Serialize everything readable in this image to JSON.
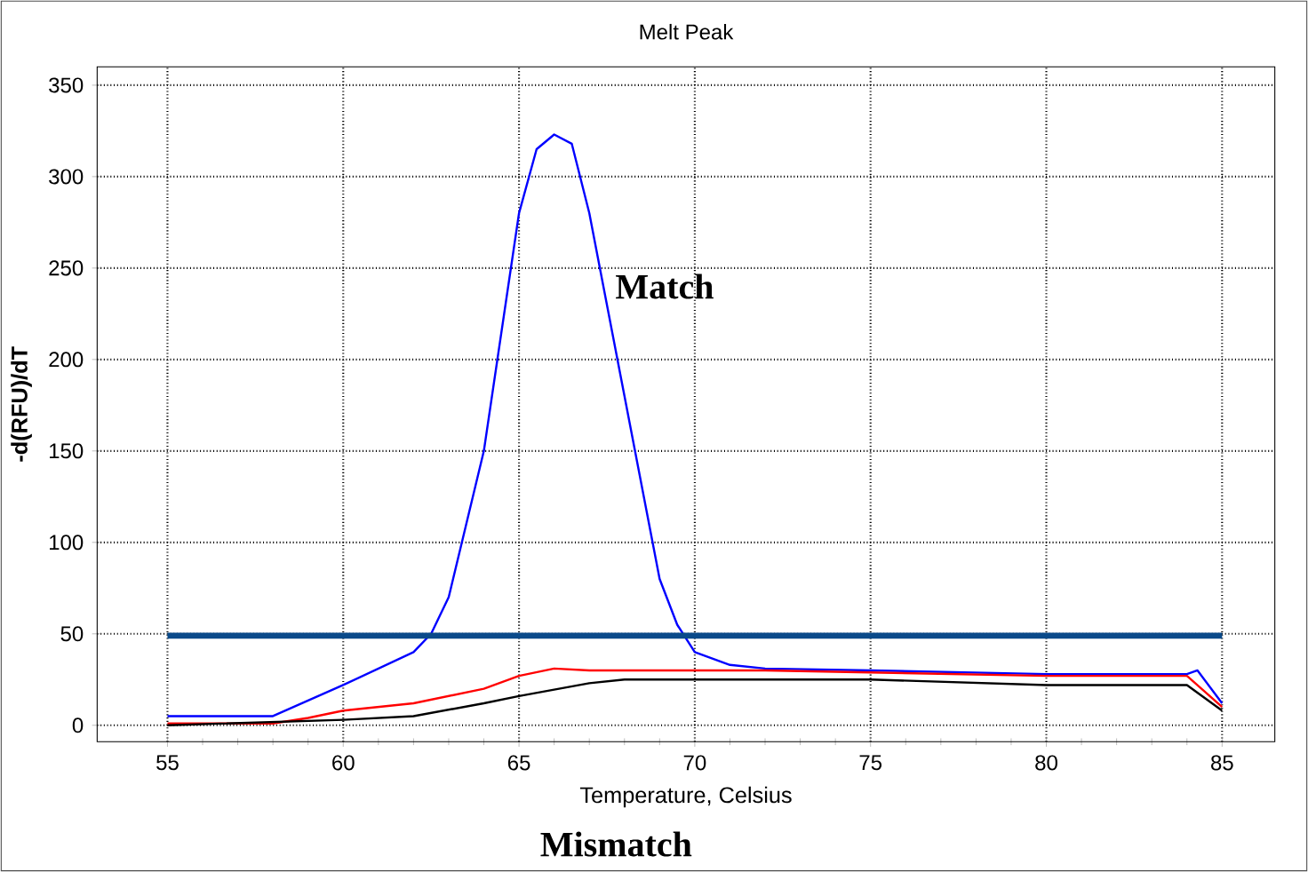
{
  "chart_data": {
    "type": "line",
    "title": "Melt Peak",
    "xlabel": "Temperature, Celsius",
    "ylabel": "-d(RFU)/dT",
    "xlim": [
      53,
      86.5
    ],
    "ylim": [
      -9,
      360
    ],
    "xticks": [
      55,
      60,
      65,
      70,
      75,
      80,
      85
    ],
    "yticks": [
      0,
      50,
      100,
      150,
      200,
      250,
      300,
      350
    ],
    "grid": true,
    "marker": "none",
    "line_style": "solid",
    "series": [
      {
        "color": "#0000ff",
        "x": [
          55,
          58,
          60,
          62,
          62.5,
          63,
          64,
          65,
          65.5,
          66,
          66.5,
          67,
          68,
          69,
          69.5,
          70,
          71,
          72,
          75,
          80,
          84,
          84.3,
          85
        ],
        "values": [
          5,
          5,
          22,
          40,
          50,
          70,
          150,
          280,
          315,
          323,
          318,
          280,
          180,
          80,
          55,
          40,
          33,
          31,
          30,
          28,
          28,
          30,
          12
        ]
      },
      {
        "color": "#ff0000",
        "x": [
          55,
          58,
          59,
          60,
          62,
          64,
          65,
          66,
          67,
          70,
          72,
          80,
          84,
          85
        ],
        "values": [
          1,
          1,
          4,
          8,
          12,
          20,
          27,
          31,
          30,
          30,
          30,
          27,
          27,
          10
        ]
      },
      {
        "color": "#000000",
        "x": [
          55,
          60,
          62,
          64,
          65,
          67,
          68,
          70,
          75,
          80,
          84,
          85
        ],
        "values": [
          0,
          3,
          5,
          12,
          16,
          23,
          25,
          25,
          25,
          22,
          22,
          8
        ]
      }
    ],
    "ref_lines": [
      {
        "axis": "y",
        "value": 49,
        "color": "#0a4a8a"
      }
    ],
    "annotations": [
      {
        "text": "Match",
        "x": 67.5,
        "y": 240
      },
      "Mismatch"
    ]
  }
}
